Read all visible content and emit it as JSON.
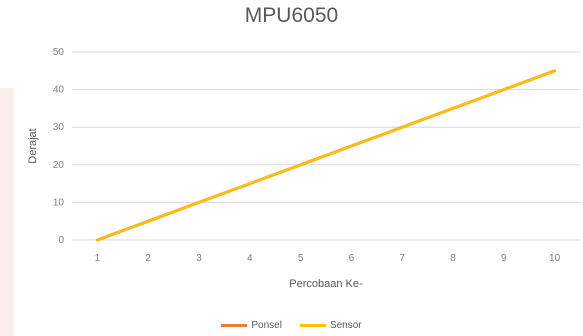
{
  "page": {
    "top_cut_text": "",
    "title": "MPU6050"
  },
  "chart_data": {
    "type": "line",
    "title": "MPU6050",
    "xlabel": "Percobaan Ke-",
    "ylabel": "Derajat",
    "x": [
      1,
      2,
      3,
      4,
      5,
      6,
      7,
      8,
      9,
      10
    ],
    "ylim": [
      0,
      50
    ],
    "yticks": [
      0,
      10,
      20,
      30,
      40,
      50
    ],
    "grid": true,
    "legend_position": "bottom",
    "series": [
      {
        "name": "Ponsel",
        "color": "#ed7d31",
        "values": [
          0,
          5,
          10,
          15,
          20,
          25,
          30,
          35,
          40,
          45
        ]
      },
      {
        "name": "Sensor",
        "color": "#ffc000",
        "values": [
          0,
          5,
          10,
          15,
          20,
          25,
          30,
          35,
          40,
          45
        ]
      }
    ]
  }
}
